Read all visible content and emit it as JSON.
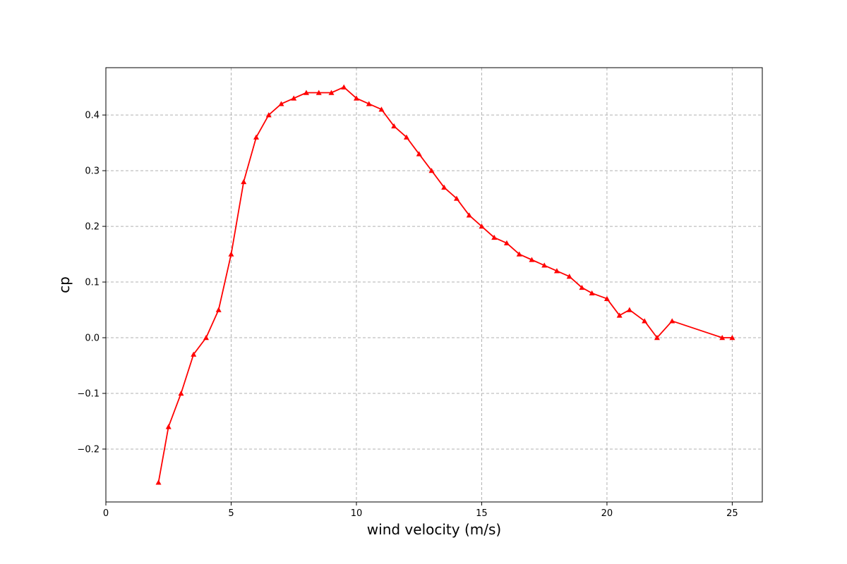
{
  "chart_data": {
    "type": "line",
    "title": "",
    "xlabel": "wind velocity (m/s)",
    "ylabel": "cp",
    "xlim": [
      0,
      26.2
    ],
    "ylim": [
      -0.295,
      0.485
    ],
    "xticks": [
      0,
      5,
      10,
      15,
      20,
      25
    ],
    "yticks": [
      -0.2,
      -0.1,
      0.0,
      0.1,
      0.2,
      0.3,
      0.4
    ],
    "xtick_labels": [
      "0",
      "5",
      "10",
      "15",
      "20",
      "25"
    ],
    "ytick_labels": [
      "−0.2",
      "−0.1",
      "0.0",
      "0.1",
      "0.2",
      "0.3",
      "0.4"
    ],
    "grid": true,
    "legend": "none",
    "series": [
      {
        "color": "#ff0000",
        "marker": "triangle-up",
        "x": [
          2.1,
          2.5,
          3.0,
          3.5,
          4.0,
          4.5,
          5.0,
          5.5,
          6.0,
          6.5,
          7.0,
          7.5,
          8.0,
          8.5,
          9.0,
          9.5,
          10.0,
          10.5,
          11.0,
          11.5,
          12.0,
          12.5,
          13.0,
          13.5,
          14.0,
          14.5,
          15.0,
          15.5,
          16.0,
          16.5,
          17.0,
          17.5,
          18.0,
          18.5,
          19.0,
          19.4,
          20.0,
          20.5,
          20.9,
          21.5,
          22.0,
          22.6,
          24.6,
          25.0
        ],
        "y": [
          -0.26,
          -0.16,
          -0.1,
          -0.03,
          0.0,
          0.05,
          0.15,
          0.28,
          0.36,
          0.4,
          0.42,
          0.43,
          0.44,
          0.44,
          0.44,
          0.45,
          0.43,
          0.42,
          0.41,
          0.38,
          0.36,
          0.33,
          0.3,
          0.27,
          0.25,
          0.22,
          0.2,
          0.18,
          0.17,
          0.15,
          0.14,
          0.13,
          0.12,
          0.11,
          0.09,
          0.08,
          0.07,
          0.04,
          0.05,
          0.03,
          0.0,
          0.03,
          0.0,
          0.0
        ]
      }
    ]
  }
}
